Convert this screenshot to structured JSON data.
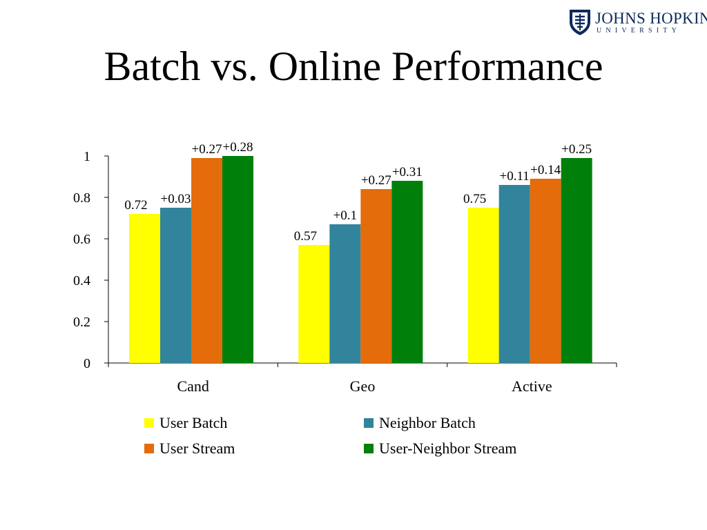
{
  "slide": {
    "title": "Batch vs. Online Performance"
  },
  "logo": {
    "name": "JOHNS HOPKINS",
    "sub": "UNIVERSITY",
    "icon": "shield-icon"
  },
  "colors": {
    "user_batch": "#ffff00",
    "neighbor_batch": "#31849b",
    "user_stream": "#e46c0a",
    "user_neighbor_stream": "#00800a",
    "logo": "#0d2a5c"
  },
  "chart_data": {
    "type": "bar",
    "categories": [
      "Cand",
      "Geo",
      "Active"
    ],
    "ylim": [
      0,
      1
    ],
    "yticks": [
      "0",
      "0.2",
      "0.4",
      "0.6",
      "0.8",
      "1"
    ],
    "legend_position": "bottom",
    "grid": false,
    "series": [
      {
        "name": "User Batch",
        "color": "#ffff00",
        "values": [
          0.72,
          0.57,
          0.75
        ],
        "labels": [
          "0.72",
          "0.57",
          "0.75"
        ]
      },
      {
        "name": "Neighbor Batch",
        "color": "#31849b",
        "values": [
          0.75,
          0.67,
          0.86
        ],
        "labels": [
          "+0.03",
          "+0.1",
          "+0.11"
        ]
      },
      {
        "name": "User Stream",
        "color": "#e46c0a",
        "values": [
          0.99,
          0.84,
          0.89
        ],
        "labels": [
          "+0.27",
          "+0.27",
          "+0.14"
        ]
      },
      {
        "name": "User-Neighbor Stream",
        "color": "#00800a",
        "values": [
          1.0,
          0.88,
          0.99
        ],
        "labels": [
          "+0.28",
          "+0.31",
          "+0.25"
        ]
      }
    ]
  }
}
